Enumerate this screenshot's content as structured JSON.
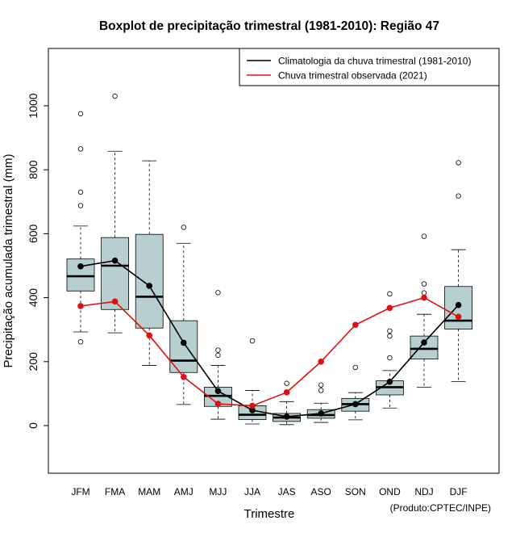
{
  "chart_data": {
    "type": "boxplot",
    "title": "Boxplot de precipitação trimestral (1981-2010): Região 47",
    "xlabel": "Trimestre",
    "ylabel": "Precipitação acumulada trimestral (mm)",
    "ylim": [
      -150,
      1180
    ],
    "yticks": [
      0,
      200,
      400,
      600,
      800,
      1000
    ],
    "grid": false,
    "legend_position": "top-right",
    "credit": "(Produto:CPTEC/INPE)",
    "box_color": "#b8cfcf",
    "categories": [
      "JFM",
      "FMA",
      "MAM",
      "AMJ",
      "MJJ",
      "JJA",
      "JAS",
      "ASO",
      "SON",
      "OND",
      "NDJ",
      "DJF"
    ],
    "boxes": [
      {
        "min": 293,
        "q1": 421,
        "median": 467,
        "q3": 521,
        "max": 624,
        "outliers": [
          262,
          688,
          730,
          865,
          975
        ]
      },
      {
        "min": 290,
        "q1": 363,
        "median": 500,
        "q3": 588,
        "max": 858,
        "outliers": [
          1030
        ]
      },
      {
        "min": 188,
        "q1": 305,
        "median": 403,
        "q3": 598,
        "max": 828,
        "outliers": []
      },
      {
        "min": 66,
        "q1": 166,
        "median": 203,
        "q3": 328,
        "max": 570,
        "outliers": [
          620
        ]
      },
      {
        "min": 20,
        "q1": 60,
        "median": 93,
        "q3": 120,
        "max": 188,
        "outliers": [
          220,
          236,
          416
        ]
      },
      {
        "min": 5,
        "q1": 19,
        "median": 34,
        "q3": 62,
        "max": 110,
        "outliers": [
          265
        ]
      },
      {
        "min": 3,
        "q1": 13,
        "median": 25,
        "q3": 38,
        "max": 75,
        "outliers": [
          132
        ]
      },
      {
        "min": 10,
        "q1": 23,
        "median": 33,
        "q3": 50,
        "max": 70,
        "outliers": [
          110,
          127
        ]
      },
      {
        "min": 18,
        "q1": 45,
        "median": 67,
        "q3": 85,
        "max": 103,
        "outliers": [
          182
        ]
      },
      {
        "min": 55,
        "q1": 96,
        "median": 120,
        "q3": 140,
        "max": 172,
        "outliers": [
          212,
          280,
          296,
          412
        ]
      },
      {
        "min": 120,
        "q1": 208,
        "median": 240,
        "q3": 280,
        "max": 348,
        "outliers": [
          415,
          443,
          592
        ]
      },
      {
        "min": 138,
        "q1": 302,
        "median": 328,
        "q3": 435,
        "max": 550,
        "outliers": [
          718,
          822
        ]
      }
    ],
    "series": [
      {
        "name": "Climatologia da chuva trimestral (1981-2010)",
        "color": "#000000",
        "values": [
          498,
          516,
          437,
          259,
          108,
          48,
          28,
          38,
          67,
          137,
          260,
          377
        ]
      },
      {
        "name": "Chuva trimestral observada (2021)",
        "color": "#e01010",
        "values": [
          374,
          388,
          282,
          152,
          68,
          62,
          104,
          200,
          315,
          368,
          400,
          340
        ]
      }
    ]
  }
}
